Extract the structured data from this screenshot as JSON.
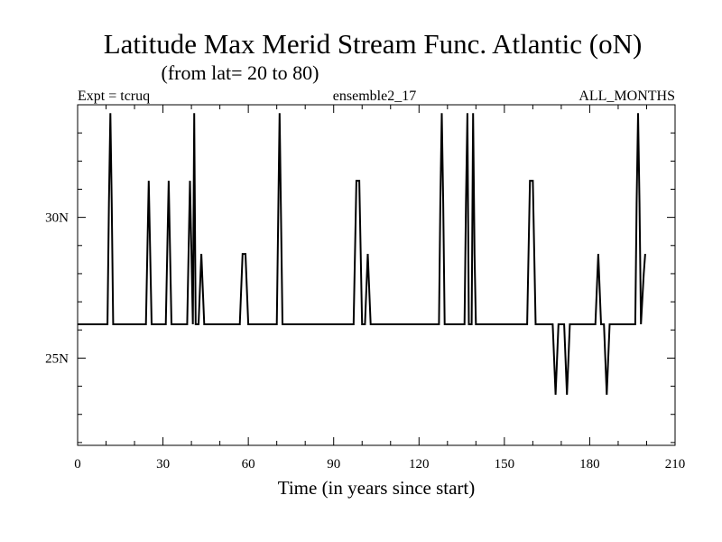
{
  "chart_data": {
    "type": "line",
    "title": "Latitude Max Merid Stream Func. Atlantic (oN)",
    "subtitle": "(from lat= 20 to 80)",
    "header": {
      "left": "Expt = tcruq",
      "center": "ensemble2_17",
      "right": "ALL_MONTHS"
    },
    "xlabel": "Time (in years since start)",
    "ylabel": "",
    "xlim": [
      0,
      210
    ],
    "ylim": [
      21.9,
      34.0
    ],
    "x_ticks": [
      0,
      30,
      60,
      90,
      120,
      150,
      180,
      210
    ],
    "x_tick_labels": [
      "0",
      "30",
      "60",
      "90",
      "120",
      "150",
      "180",
      "210"
    ],
    "y_major_ticks": [
      25,
      30
    ],
    "y_tick_labels": [
      "25N",
      "30N"
    ],
    "y_minor_step": 1,
    "x_minor_step": 10,
    "grid": false,
    "series": [
      {
        "name": "ensemble2_17",
        "color": "#000000",
        "x": [
          0,
          10.5,
          11,
          11.5,
          12,
          12.5,
          24,
          25,
          26,
          31,
          32,
          33,
          38.5,
          39.5,
          40.5,
          41,
          41.5,
          42.5,
          43.5,
          44.5,
          45.5,
          57,
          58,
          59,
          60,
          70,
          71,
          72,
          97,
          98,
          99,
          100,
          101,
          102,
          103,
          127,
          127.5,
          128,
          128.5,
          129,
          136,
          136.5,
          137,
          137.5,
          138.5,
          139,
          139.5,
          140,
          158,
          159,
          160,
          161,
          167,
          168,
          169,
          170,
          171,
          172,
          173,
          182,
          183,
          184,
          185,
          186,
          187,
          196,
          196.5,
          197,
          197.5,
          198,
          199,
          199.5
        ],
        "values": [
          26.2,
          26.2,
          30.5,
          33.7,
          30.5,
          26.2,
          26.2,
          31.3,
          26.2,
          26.2,
          31.3,
          26.2,
          26.2,
          31.3,
          26.2,
          33.7,
          26.2,
          26.2,
          28.7,
          26.2,
          26.2,
          26.2,
          28.7,
          28.7,
          26.2,
          26.2,
          33.7,
          26.2,
          26.2,
          31.3,
          31.3,
          26.2,
          26.2,
          28.7,
          26.2,
          26.2,
          30.5,
          33.7,
          30.5,
          26.2,
          26.2,
          30.5,
          33.7,
          26.2,
          26.2,
          33.7,
          28.7,
          26.2,
          26.2,
          31.3,
          31.3,
          26.2,
          26.2,
          23.7,
          26.2,
          26.2,
          26.2,
          23.7,
          26.2,
          26.2,
          28.7,
          26.2,
          26.2,
          23.7,
          26.2,
          26.2,
          30.5,
          33.7,
          30.5,
          26.2,
          28.0,
          28.7
        ]
      }
    ]
  }
}
